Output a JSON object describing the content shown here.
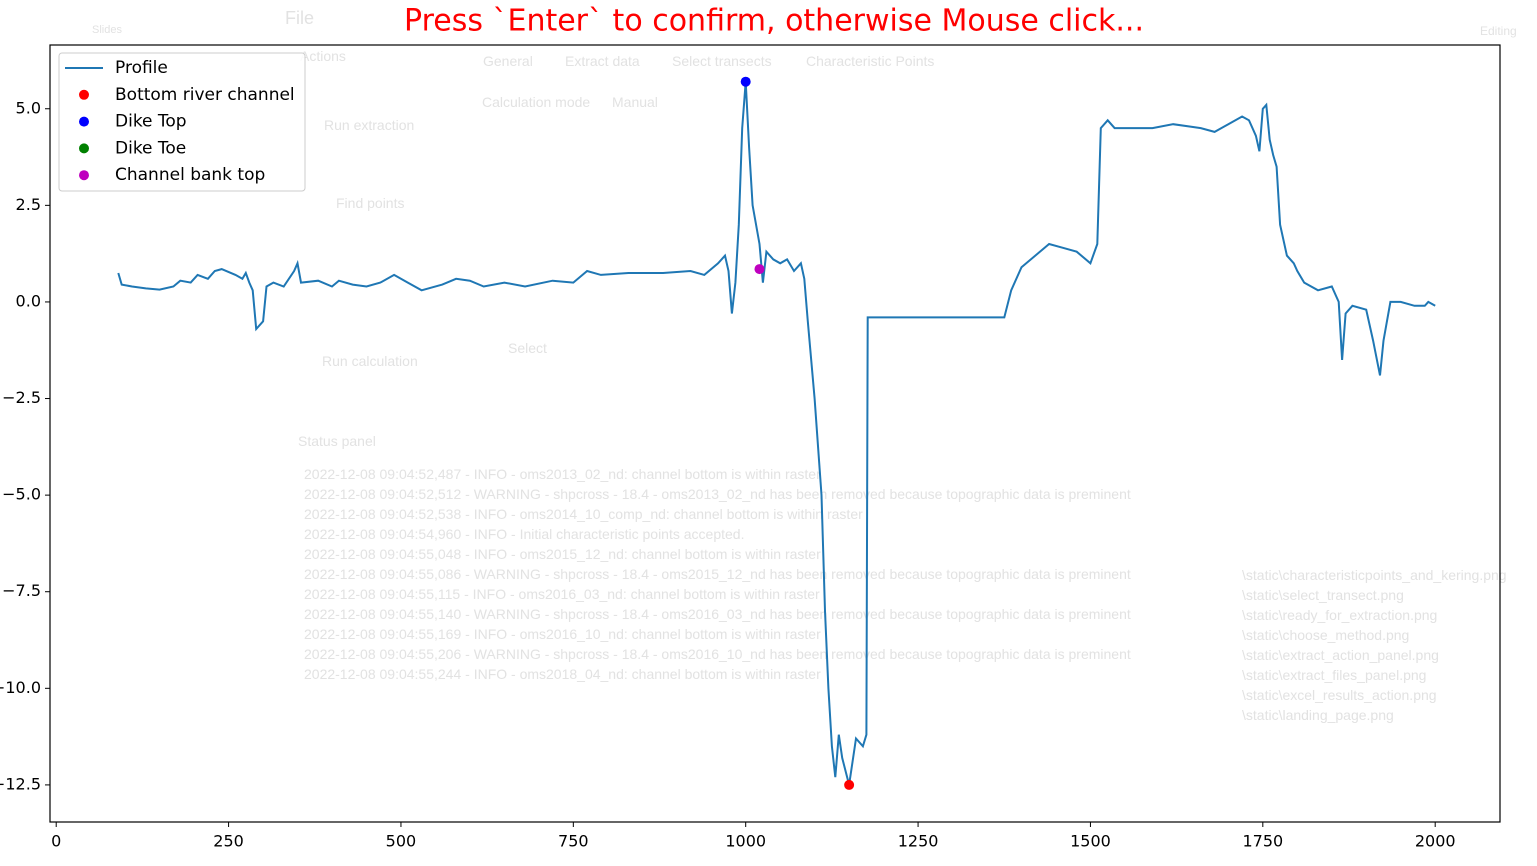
{
  "chart_data": {
    "type": "line",
    "title": "Press `Enter` to confirm, otherwise Mouse click...",
    "xlim": [
      -9,
      2094
    ],
    "xticks": [
      0,
      250,
      500,
      750,
      1000,
      1250,
      1500,
      1750,
      2000
    ],
    "ylim": [
      -13.46,
      6.65
    ],
    "yticks": [
      {
        "value": 5,
        "label": "5.0"
      },
      {
        "value": 2.5,
        "label": "2.5"
      },
      {
        "value": 0,
        "label": "0.0"
      },
      {
        "value": -2.5,
        "label": "−2.5"
      },
      {
        "value": -5,
        "label": "−5.0"
      },
      {
        "value": -7.5,
        "label": "−7.5"
      },
      {
        "value": -10,
        "label": "−10.0"
      },
      {
        "value": -12.5,
        "label": "−12.5"
      }
    ],
    "legend": "upper left",
    "series": [
      {
        "name": "Profile",
        "type": "line",
        "color": "#1f77b4",
        "x": [
          90,
          95,
          110,
          130,
          150,
          170,
          180,
          195,
          205,
          220,
          230,
          240,
          260,
          270,
          275,
          280,
          285,
          290,
          300,
          305,
          315,
          330,
          345,
          350,
          355,
          380,
          400,
          410,
          430,
          450,
          470,
          490,
          510,
          530,
          560,
          580,
          600,
          620,
          650,
          680,
          720,
          750,
          770,
          790,
          830,
          880,
          920,
          940,
          960,
          970,
          975,
          980,
          985,
          990,
          995,
          1000,
          1005,
          1010,
          1020,
          1025,
          1030,
          1040,
          1050,
          1060,
          1070,
          1080,
          1085,
          1090,
          1100,
          1110,
          1115,
          1120,
          1125,
          1130,
          1135,
          1140,
          1150,
          1160,
          1170,
          1175,
          1177,
          1375,
          1385,
          1400,
          1420,
          1440,
          1460,
          1480,
          1500,
          1510,
          1515,
          1525,
          1535,
          1560,
          1590,
          1620,
          1660,
          1680,
          1700,
          1720,
          1730,
          1740,
          1745,
          1750,
          1755,
          1760,
          1765,
          1770,
          1775,
          1785,
          1795,
          1800,
          1810,
          1830,
          1850,
          1860,
          1865,
          1870,
          1880,
          1900,
          1910,
          1920,
          1925,
          1935,
          1950,
          1970,
          1985,
          1990,
          2000
        ],
        "values": [
          0.75,
          0.45,
          0.4,
          0.35,
          0.32,
          0.4,
          0.55,
          0.5,
          0.7,
          0.6,
          0.8,
          0.85,
          0.7,
          0.6,
          0.75,
          0.5,
          0.3,
          -0.7,
          -0.5,
          0.4,
          0.5,
          0.4,
          0.8,
          1.0,
          0.5,
          0.55,
          0.4,
          0.55,
          0.45,
          0.4,
          0.5,
          0.7,
          0.5,
          0.3,
          0.45,
          0.6,
          0.55,
          0.4,
          0.5,
          0.4,
          0.55,
          0.5,
          0.8,
          0.7,
          0.75,
          0.75,
          0.8,
          0.7,
          1.0,
          1.2,
          0.8,
          -0.3,
          0.5,
          2.0,
          4.5,
          5.7,
          4.0,
          2.5,
          1.5,
          0.5,
          1.3,
          1.1,
          1.0,
          1.1,
          0.8,
          1.0,
          0.6,
          -0.5,
          -2.5,
          -5.0,
          -8,
          -10,
          -11.5,
          -12.3,
          -11.2,
          -11.8,
          -12.5,
          -11.3,
          -11.5,
          -11.2,
          -0.4,
          -0.4,
          0.3,
          0.9,
          1.2,
          1.5,
          1.4,
          1.3,
          1.0,
          1.5,
          4.5,
          4.7,
          4.5,
          4.5,
          4.5,
          4.6,
          4.5,
          4.4,
          4.6,
          4.8,
          4.7,
          4.3,
          3.9,
          5.0,
          5.1,
          4.2,
          3.8,
          3.5,
          2.0,
          1.2,
          1.0,
          0.8,
          0.5,
          0.3,
          0.4,
          0.0,
          -1.5,
          -0.3,
          -0.1,
          -0.2,
          -1.0,
          -1.9,
          -1.0,
          0.0,
          0.0,
          -0.1,
          -0.1,
          0.0,
          -0.1
        ]
      },
      {
        "name": "Bottom river channel",
        "type": "scatter",
        "color": "#ff0000",
        "x": [
          1150
        ],
        "values": [
          -12.5
        ]
      },
      {
        "name": "Dike Top",
        "type": "scatter",
        "color": "#0000ff",
        "x": [
          1000
        ],
        "values": [
          5.7
        ]
      },
      {
        "name": "Dike Toe",
        "type": "scatter",
        "color": "#008000",
        "x": [],
        "values": []
      },
      {
        "name": "Channel bank top",
        "type": "scatter",
        "color": "#bf00bf",
        "x": [
          1020
        ],
        "values": [
          0.85
        ]
      }
    ]
  },
  "backdrop": {
    "file": "File",
    "actions": "Actions",
    "slides": "Slides",
    "editing": "Editing",
    "tabs": [
      "General",
      "Extract data",
      "Select transects",
      "Characteristic Points"
    ],
    "calc_label": "Calculation mode",
    "calc_value": "Manual",
    "buttons": [
      "Run extraction",
      "Find points",
      "Run calculation"
    ],
    "select": "Select",
    "status_title": "Status panel",
    "log": [
      "2022-12-08 09:04:52,487 - INFO - oms2013_02_nd: channel bottom is within raster",
      "2022-12-08 09:04:52,512 - WARNING - shpcross - 18.4 - oms2013_02_nd has been removed because topographic data is preminent",
      "2022-12-08 09:04:52,538 - INFO - oms2014_10_comp_nd: channel bottom is within raster",
      "2022-12-08 09:04:54,960 - INFO - Initial characteristic points accepted.",
      "2022-12-08 09:04:55,048 - INFO - oms2015_12_nd: channel bottom is within raster",
      "2022-12-08 09:04:55,086 - WARNING - shpcross - 18.4 - oms2015_12_nd has been removed because topographic data is preminent",
      "2022-12-08 09:04:55,115 - INFO - oms2016_03_nd: channel bottom is within raster",
      "2022-12-08 09:04:55,140 - WARNING - shpcross - 18.4 - oms2016_03_nd has been removed because topographic data is preminent",
      "2022-12-08 09:04:55,169 - INFO - oms2016_10_nd: channel bottom is within raster",
      "2022-12-08 09:04:55,206 - WARNING - shpcross - 18.4 - oms2016_10_nd has been removed because topographic data is preminent",
      "2022-12-08 09:04:55,244 - INFO - oms2018_04_nd: channel bottom is within raster"
    ],
    "files": [
      "\\static\\characteristicpoints_and_kering.png",
      "\\static\\select_transect.png",
      "\\static\\ready_for_extraction.png",
      "\\static\\choose_method.png",
      "\\static\\extract_action_panel.png",
      "\\static\\extract_files_panel.png",
      "\\static\\excel_results_action.png",
      "\\static\\landing_page.png"
    ]
  }
}
